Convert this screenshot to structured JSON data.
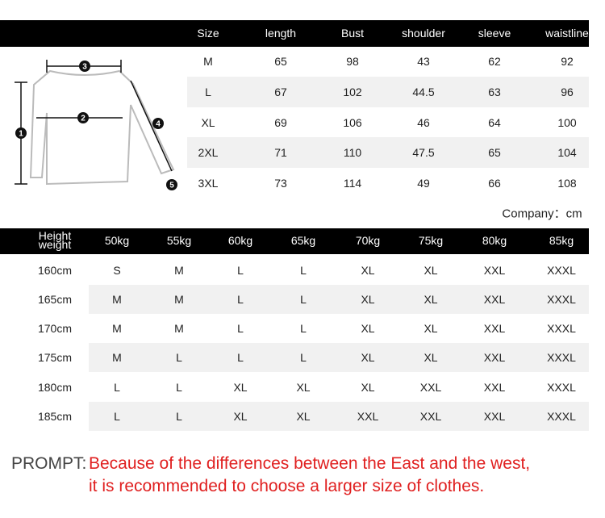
{
  "size_table": {
    "header": [
      "Size",
      "length",
      "Bust",
      "shoulder",
      "sleeve",
      "waistline"
    ],
    "rows": [
      [
        "M",
        65,
        98,
        43,
        62,
        92
      ],
      [
        "L",
        67,
        102,
        44.5,
        63,
        96
      ],
      [
        "XL",
        69,
        106,
        46,
        64,
        100
      ],
      [
        "2XL",
        71,
        110,
        47.5,
        65,
        104
      ],
      [
        "3XL",
        73,
        114,
        49,
        66,
        108
      ]
    ]
  },
  "unit_note": "Company：cm",
  "fit_table": {
    "header": [
      "Height weight",
      "50kg",
      "55kg",
      "60kg",
      "65kg",
      "70kg",
      "75kg",
      "80kg",
      "85kg"
    ],
    "rows": [
      [
        "160cm",
        "S",
        "M",
        "L",
        "L",
        "XL",
        "XL",
        "XXL",
        "XXXL"
      ],
      [
        "165cm",
        "M",
        "M",
        "L",
        "L",
        "XL",
        "XL",
        "XXL",
        "XXXL"
      ],
      [
        "170cm",
        "M",
        "M",
        "L",
        "L",
        "XL",
        "XL",
        "XXL",
        "XXXL"
      ],
      [
        "175cm",
        "M",
        "L",
        "L",
        "L",
        "XL",
        "XL",
        "XXL",
        "XXXL"
      ],
      [
        "180cm",
        "L",
        "L",
        "XL",
        "XL",
        "XL",
        "XXL",
        "XXL",
        "XXXL"
      ],
      [
        "185cm",
        "L",
        "L",
        "XL",
        "XL",
        "XXL",
        "XXL",
        "XXL",
        "XXXL"
      ]
    ]
  },
  "diagram_labels": [
    "1",
    "2",
    "3",
    "4",
    "5"
  ],
  "prompt": {
    "label": "PROMPT:",
    "line1": "Because of the differences between the East and the west,",
    "line2": "it is recommended to choose a larger size of clothes."
  }
}
